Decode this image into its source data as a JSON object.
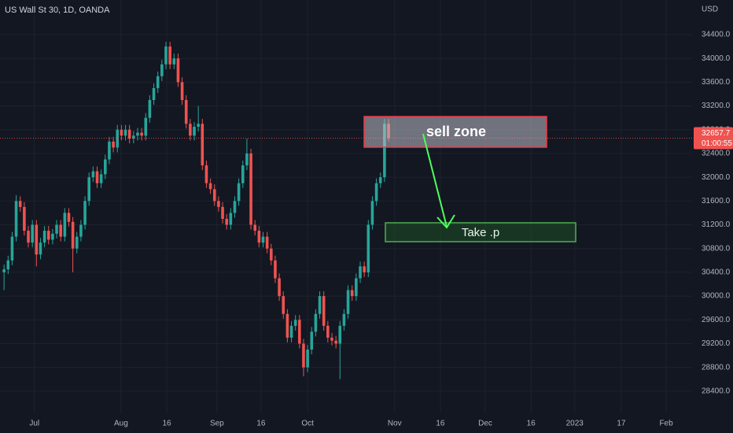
{
  "chart_data": {
    "type": "candlestick",
    "title": "US Wall St 30, 1D, OANDA",
    "currency": "USD",
    "countdown": "01:00:55",
    "up_color": "#26a69a",
    "down_color": "#ef5350",
    "grid": true,
    "xlim": [
      -1,
      170
    ],
    "xticks": [
      {
        "value": 7.5,
        "label": "Jul"
      },
      {
        "value": 28.9,
        "label": "Aug"
      },
      {
        "value": 40.2,
        "label": "16"
      },
      {
        "value": 52.6,
        "label": "Sep"
      },
      {
        "value": 63.5,
        "label": "16"
      },
      {
        "value": 75,
        "label": "Oct"
      },
      {
        "value": 96.5,
        "label": "Nov"
      },
      {
        "value": 107.8,
        "label": "16"
      },
      {
        "value": 118.9,
        "label": "Dec"
      },
      {
        "value": 130.2,
        "label": "16"
      },
      {
        "value": 141,
        "label": "2023"
      },
      {
        "value": 152.5,
        "label": "17"
      },
      {
        "value": 163.6,
        "label": "Feb"
      }
    ],
    "ylim": [
      28027,
      34983
    ],
    "yticks": [
      {
        "value": 28400,
        "label": "28400.0"
      },
      {
        "value": 28800,
        "label": "28800.0"
      },
      {
        "value": 29200,
        "label": "29200.0"
      },
      {
        "value": 29600,
        "label": "29600.0"
      },
      {
        "value": 30000,
        "label": "30000.0"
      },
      {
        "value": 30400,
        "label": "30400.0"
      },
      {
        "value": 30800,
        "label": "30800.0"
      },
      {
        "value": 31200,
        "label": "31200.0"
      },
      {
        "value": 31600,
        "label": "31600.0"
      },
      {
        "value": 32000,
        "label": "32000.0"
      },
      {
        "value": 32400,
        "label": "32400.0"
      },
      {
        "value": 32800,
        "label": "32800.0"
      },
      {
        "value": 33200,
        "label": "33200.0"
      },
      {
        "value": 33600,
        "label": "33600.0"
      },
      {
        "value": 34000,
        "label": "34000.0"
      },
      {
        "value": 34400,
        "label": "34400.0"
      }
    ],
    "open": [
      30400,
      30450,
      30600,
      31000,
      31600,
      31500,
      31100,
      30900,
      31200,
      30700,
      30900,
      31100,
      30950,
      31050,
      31200,
      31000,
      31400,
      31250,
      30800,
      31000,
      31200,
      31600,
      32000,
      32100,
      31900,
      32050,
      32300,
      32600,
      32500,
      32800,
      32700,
      32800,
      32650,
      32700,
      32750,
      32700,
      33000,
      33300,
      33500,
      33700,
      33900,
      34200,
      33900,
      34000,
      33600,
      33300,
      32900,
      32700,
      32850,
      32900,
      32200,
      31900,
      31800,
      31600,
      31500,
      31300,
      31200,
      31400,
      31600,
      31900,
      32200,
      32400,
      31200,
      31100,
      30900,
      31000,
      30800,
      30600,
      30300,
      30000,
      29700,
      29300,
      29500,
      29600,
      29200,
      28800,
      29100,
      29400,
      29700,
      30000,
      29500,
      29300,
      29250,
      29200,
      29500,
      29700,
      30100,
      30000,
      30300,
      30500,
      30400,
      31200,
      31600,
      31900,
      32000,
      32900
    ],
    "high": [
      30530,
      30680,
      31080,
      31700,
      31680,
      31580,
      31180,
      31280,
      31280,
      30980,
      31180,
      31180,
      31130,
      31280,
      31280,
      31480,
      31480,
      31330,
      31080,
      31280,
      31680,
      32080,
      32180,
      32180,
      32130,
      32380,
      32680,
      32680,
      32880,
      32880,
      32880,
      32880,
      32780,
      32830,
      32830,
      33080,
      33380,
      33580,
      33780,
      33980,
      34280,
      34280,
      34080,
      34080,
      33680,
      33380,
      32980,
      32930,
      33200,
      32980,
      32280,
      31980,
      31880,
      31680,
      31580,
      31380,
      31480,
      31680,
      31980,
      32280,
      32650,
      32480,
      31280,
      31180,
      31080,
      31080,
      30880,
      30680,
      30380,
      30080,
      29780,
      29580,
      29680,
      29680,
      29280,
      29180,
      29480,
      29780,
      30080,
      30080,
      29580,
      29380,
      29330,
      29580,
      29780,
      30180,
      30180,
      30380,
      30580,
      30580,
      31280,
      31680,
      31980,
      32080,
      32980,
      32980
    ],
    "low": [
      30100,
      30370,
      30520,
      30920,
      31420,
      31020,
      30820,
      30820,
      30500,
      30620,
      30820,
      30870,
      30870,
      30970,
      30920,
      30920,
      31170,
      30400,
      30720,
      30920,
      31120,
      31520,
      31920,
      31820,
      31820,
      31970,
      32220,
      32420,
      32420,
      32620,
      32620,
      32570,
      32570,
      32620,
      32620,
      32620,
      32920,
      33220,
      33420,
      33620,
      33820,
      33820,
      33820,
      33520,
      33220,
      32820,
      32620,
      32620,
      32770,
      32120,
      31820,
      31720,
      31520,
      31420,
      31220,
      31120,
      31120,
      31320,
      31520,
      31820,
      32120,
      31120,
      31020,
      30820,
      30820,
      30720,
      30520,
      30220,
      29920,
      29620,
      29220,
      29220,
      29420,
      29120,
      28650,
      28720,
      29020,
      29320,
      29620,
      29420,
      29220,
      29170,
      29120,
      28600,
      29420,
      29620,
      29920,
      29920,
      30220,
      30320,
      30320,
      31120,
      31520,
      31820,
      31920,
      32600
    ],
    "close": [
      30450,
      30600,
      31000,
      31600,
      31500,
      31100,
      30900,
      31200,
      30700,
      30900,
      31100,
      30950,
      31050,
      31200,
      31000,
      31400,
      31250,
      30800,
      31000,
      31200,
      31600,
      32000,
      32100,
      31900,
      32050,
      32300,
      32600,
      32500,
      32800,
      32700,
      32800,
      32650,
      32700,
      32750,
      32700,
      33000,
      33300,
      33500,
      33700,
      33900,
      34200,
      33900,
      34000,
      33600,
      33300,
      32900,
      32700,
      32850,
      32900,
      32200,
      31900,
      31800,
      31600,
      31500,
      31300,
      31200,
      31400,
      31600,
      31900,
      32200,
      32400,
      31200,
      31100,
      30900,
      31000,
      30800,
      30600,
      30300,
      30000,
      29700,
      29300,
      29500,
      29600,
      29200,
      28800,
      29100,
      29400,
      29700,
      30000,
      29500,
      29300,
      29250,
      29200,
      29500,
      29700,
      30100,
      30000,
      30300,
      30500,
      30400,
      31200,
      31600,
      31900,
      32000,
      32900,
      32657.7
    ],
    "annotations": [
      {
        "text": "sell zone"
      },
      {
        "text": "Take .p"
      }
    ]
  }
}
